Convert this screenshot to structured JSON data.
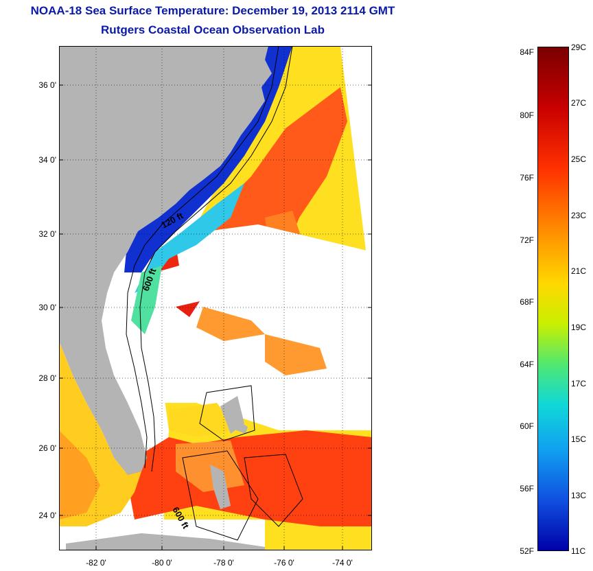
{
  "title_line1": "NOAA-18 Sea Surface Temperature:  December 19, 2013 2114 GMT",
  "title_line2": "Rutgers Coastal Ocean Observation Lab",
  "map": {
    "lat_ticks": [
      "36 0'",
      "34 0'",
      "32 0'",
      "30 0'",
      "28 0'",
      "26 0'",
      "24 0'"
    ],
    "lon_ticks": [
      "-82 0'",
      "-80 0'",
      "-78 0'",
      "-76 0'",
      "-74 0'"
    ],
    "contour_labels": [
      "120 ft",
      "600 ft",
      "600 ft"
    ],
    "land_color": "#b4b4b4"
  },
  "colorbar": {
    "fahrenheit": [
      "84F",
      "80F",
      "76F",
      "72F",
      "68F",
      "64F",
      "60F",
      "56F",
      "52F"
    ],
    "celsius": [
      "29C",
      "27C",
      "25C",
      "23C",
      "21C",
      "19C",
      "17C",
      "15C",
      "13C",
      "11C"
    ]
  }
}
